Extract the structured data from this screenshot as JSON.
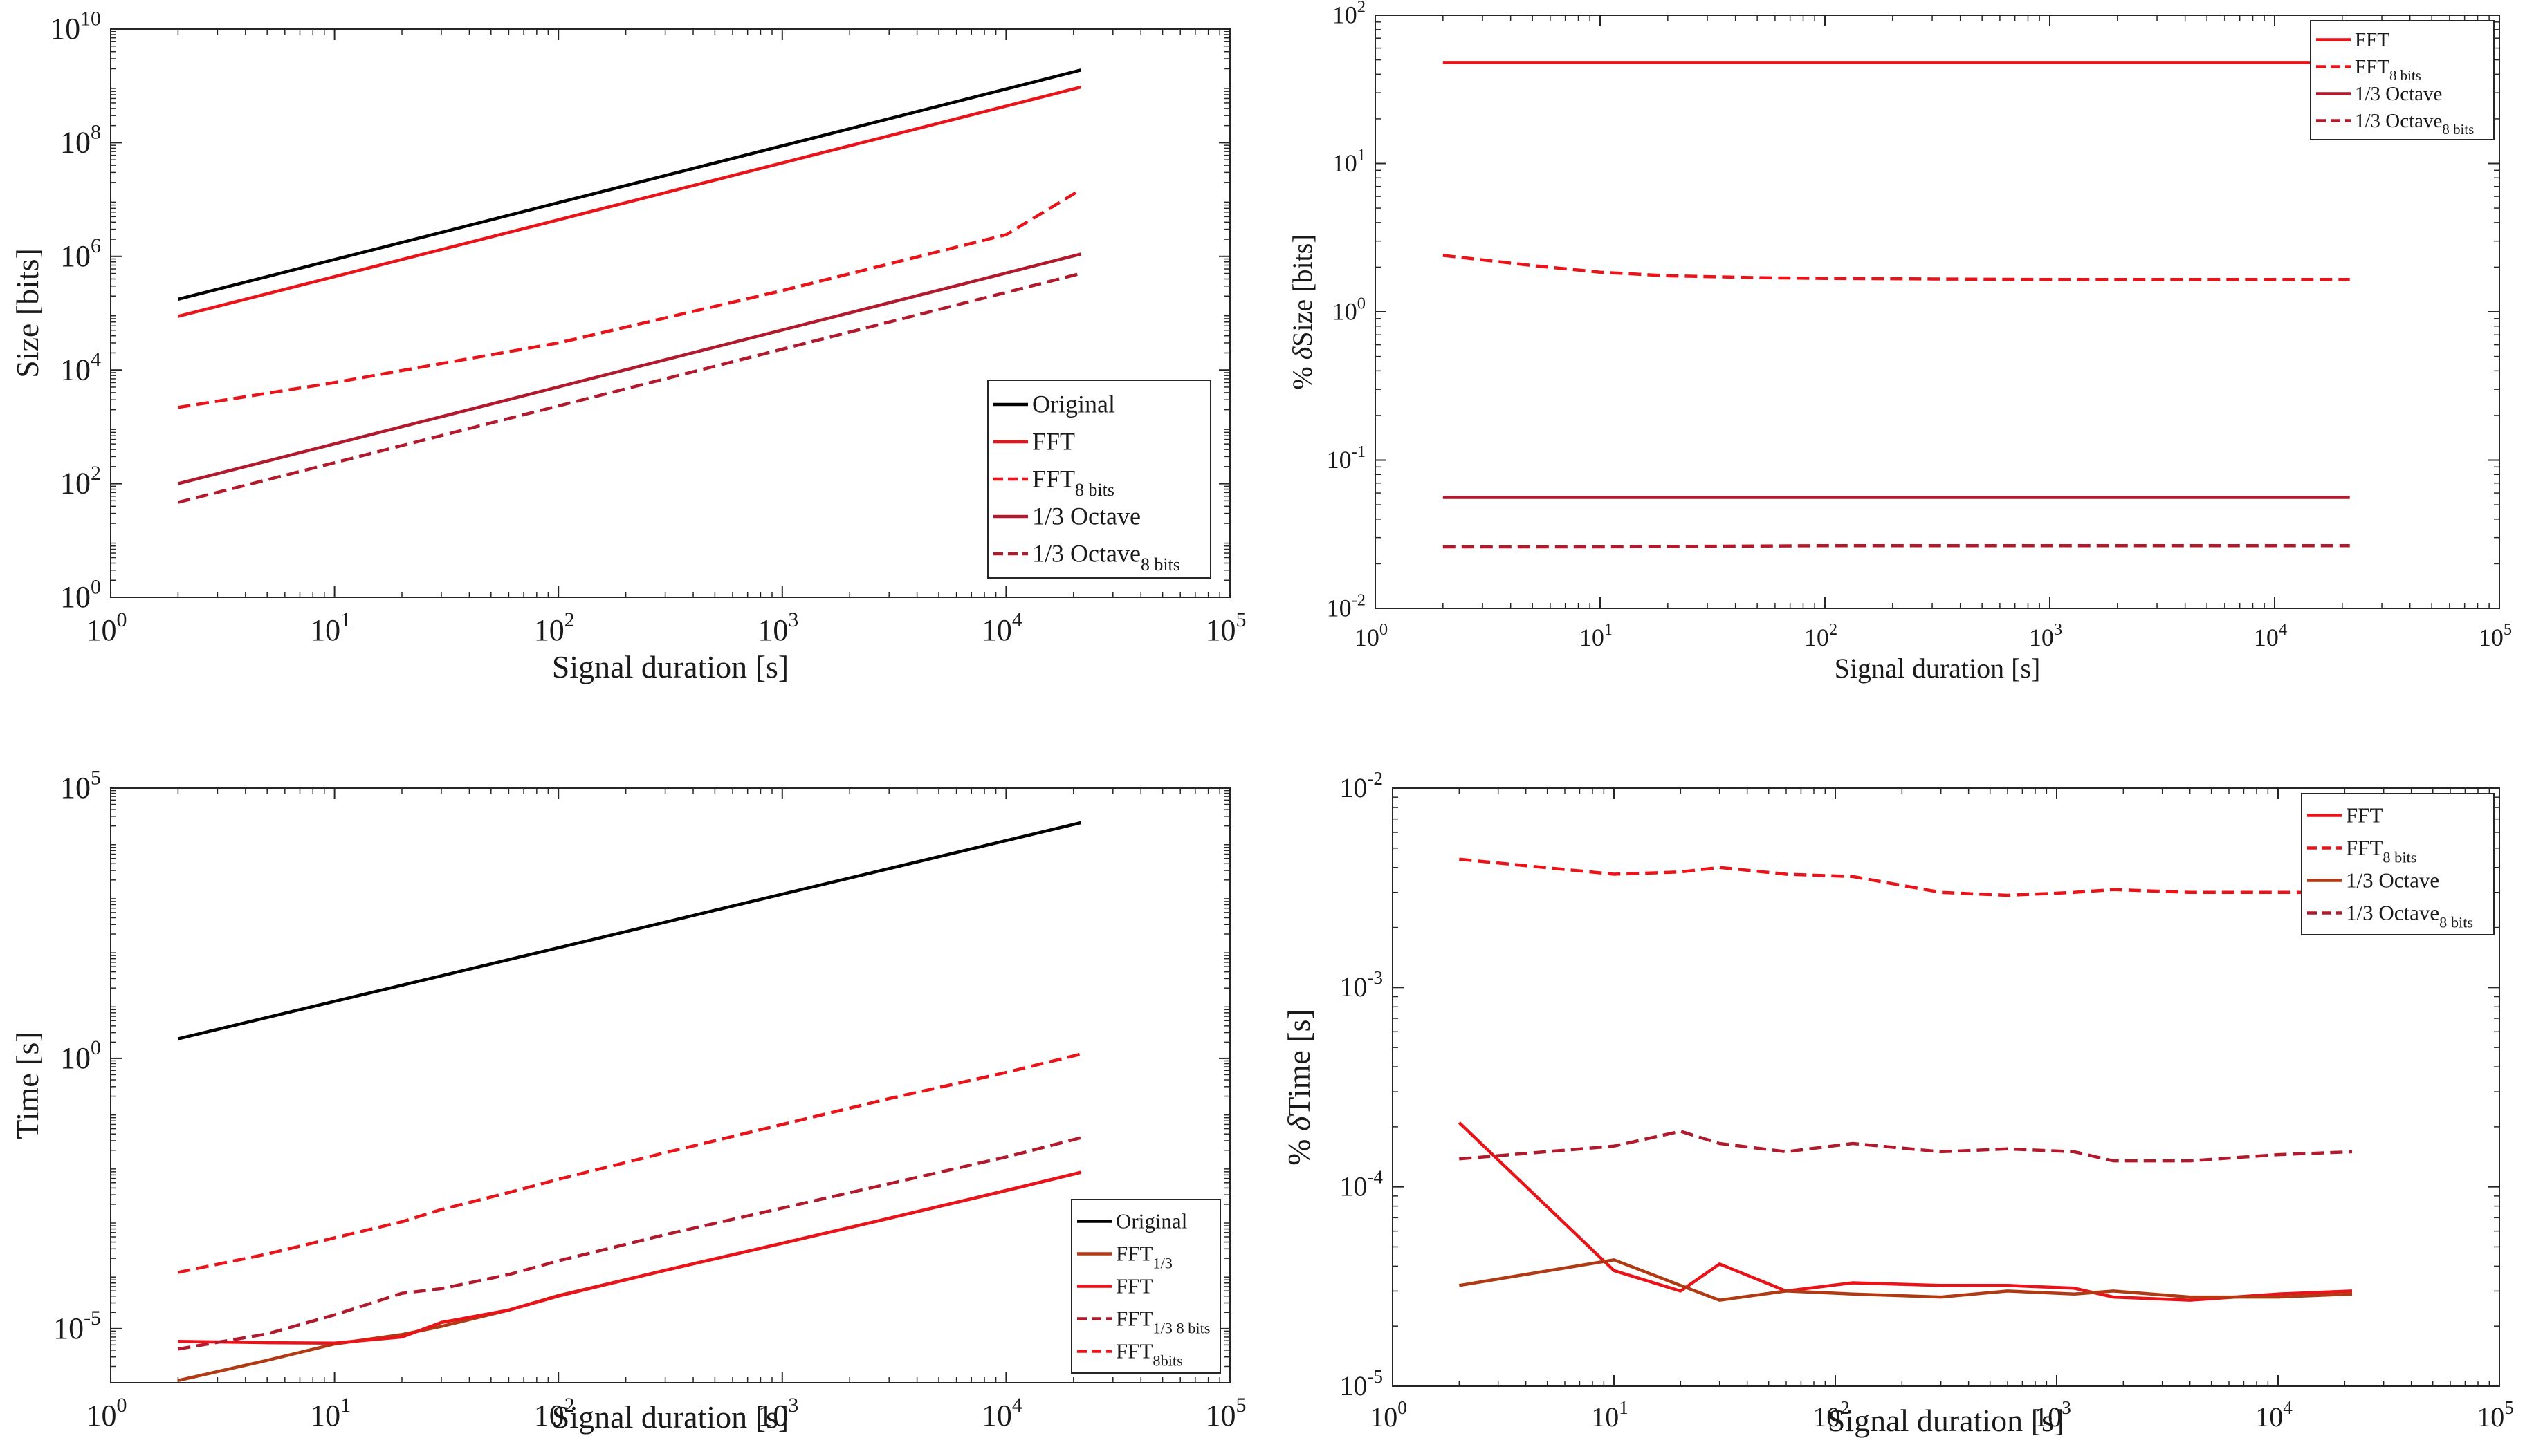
{
  "chart_data": [
    {
      "type": "line",
      "title": "",
      "xlabel": "Signal duration [s]",
      "ylabel": "Size [bits]",
      "xscale": "log",
      "yscale": "log",
      "xlim": [
        1,
        100000
      ],
      "ylim": [
        1,
        10000000000
      ],
      "xticks": [
        {
          "base": "10",
          "exp": "0"
        },
        {
          "base": "10",
          "exp": "1"
        },
        {
          "base": "10",
          "exp": "2"
        },
        {
          "base": "10",
          "exp": "3"
        },
        {
          "base": "10",
          "exp": "4"
        },
        {
          "base": "10",
          "exp": "5"
        }
      ],
      "yticks": [
        {
          "base": "10",
          "exp": "0"
        },
        {
          "base": "10",
          "exp": "2"
        },
        {
          "base": "10",
          "exp": "4"
        },
        {
          "base": "10",
          "exp": "6"
        },
        {
          "base": "10",
          "exp": "8"
        },
        {
          "base": "10",
          "exp": "10"
        }
      ],
      "legend_position": "bottom-right",
      "series": [
        {
          "name": "Original",
          "sub": "",
          "color": "#000000",
          "dash": "solid",
          "x": [
            2,
            21600
          ],
          "y": [
            176000,
            1900000000
          ]
        },
        {
          "name": "FFT",
          "sub": "",
          "color": "#e8141a",
          "dash": "solid",
          "x": [
            2,
            21600
          ],
          "y": [
            88000,
            950000000
          ]
        },
        {
          "name": "FFT",
          "sub": "8 bits",
          "color": "#e8141a",
          "dash": "dash",
          "x": [
            2,
            10,
            30,
            100,
            1000,
            10000,
            21600
          ],
          "y": [
            2200,
            6000,
            13000,
            30000,
            250000,
            2400000,
            15000000
          ]
        },
        {
          "name": "1/3 Octave",
          "sub": "",
          "color": "#b01a2c",
          "dash": "solid",
          "x": [
            2,
            21600
          ],
          "y": [
            100,
            1100000
          ]
        },
        {
          "name": "1/3 Octave",
          "sub": "8 bits",
          "color": "#b01a2c",
          "dash": "dash",
          "x": [
            2,
            21600
          ],
          "y": [
            47,
            500000
          ]
        }
      ]
    },
    {
      "type": "line",
      "title": "",
      "xlabel": "Signal duration [s]",
      "ylabel_parts": [
        "% ",
        "δ",
        "Size [bits]"
      ],
      "xscale": "log",
      "yscale": "log",
      "xlim": [
        1,
        100000
      ],
      "ylim": [
        0.01,
        100
      ],
      "xticks": [
        {
          "base": "10",
          "exp": "0"
        },
        {
          "base": "10",
          "exp": "1"
        },
        {
          "base": "10",
          "exp": "2"
        },
        {
          "base": "10",
          "exp": "3"
        },
        {
          "base": "10",
          "exp": "4"
        },
        {
          "base": "10",
          "exp": "5"
        }
      ],
      "yticks": [
        {
          "base": "10",
          "exp": "-2"
        },
        {
          "base": "10",
          "exp": "-1"
        },
        {
          "base": "10",
          "exp": "0"
        },
        {
          "base": "10",
          "exp": "1"
        },
        {
          "base": "10",
          "exp": "2"
        }
      ],
      "legend_position": "top-right",
      "series": [
        {
          "name": "FFT",
          "sub": "",
          "color": "#e8141a",
          "dash": "solid",
          "x": [
            2,
            21600
          ],
          "y": [
            48,
            48
          ]
        },
        {
          "name": "FFT",
          "sub": "8 bits",
          "color": "#e8141a",
          "dash": "dash",
          "x": [
            2,
            5,
            10,
            20,
            50,
            100,
            1000,
            21600
          ],
          "y": [
            2.4,
            2.05,
            1.85,
            1.75,
            1.7,
            1.68,
            1.65,
            1.65
          ]
        },
        {
          "name": "1/3 Octave",
          "sub": "",
          "color": "#b01a2c",
          "dash": "solid",
          "x": [
            2,
            21600
          ],
          "y": [
            0.056,
            0.056
          ]
        },
        {
          "name": "1/3 Octave",
          "sub": "8 bits",
          "color": "#b01a2c",
          "dash": "dash",
          "x": [
            2,
            10,
            100,
            21600
          ],
          "y": [
            0.026,
            0.026,
            0.0265,
            0.0265
          ]
        }
      ]
    },
    {
      "type": "line",
      "title": "",
      "xlabel": "Signal duration [s]",
      "ylabel": "Time [s]",
      "xscale": "log",
      "yscale": "log",
      "xlim": [
        1,
        100000
      ],
      "ylim": [
        1e-06,
        100000
      ],
      "xticks": [
        {
          "base": "10",
          "exp": "0"
        },
        {
          "base": "10",
          "exp": "1"
        },
        {
          "base": "10",
          "exp": "2"
        },
        {
          "base": "10",
          "exp": "3"
        },
        {
          "base": "10",
          "exp": "4"
        },
        {
          "base": "10",
          "exp": "5"
        }
      ],
      "yticks": [
        {
          "base": "10",
          "exp": "-5"
        },
        {
          "base": "10",
          "exp": "0"
        },
        {
          "base": "10",
          "exp": "5"
        }
      ],
      "legend_position": "bottom-right",
      "series": [
        {
          "name": "Original",
          "sub": "",
          "color": "#000000",
          "dash": "solid",
          "x": [
            2,
            21600
          ],
          "y": [
            2.3,
            23000
          ]
        },
        {
          "name": "FFT",
          "sub": "1/3",
          "color": "#b03a14",
          "dash": "solid",
          "x": [
            2,
            5,
            10,
            20,
            30,
            60,
            100,
            300,
            1000,
            3000,
            10000,
            21600
          ],
          "y": [
            1.1e-06,
            2.6e-06,
            5.2e-06,
            7.8e-06,
            1.1e-05,
            2.2e-05,
            4.1e-05,
            0.00012,
            0.00038,
            0.0011,
            0.0036,
            0.0078
          ]
        },
        {
          "name": "FFT",
          "sub": "",
          "color": "#e8141a",
          "dash": "solid",
          "x": [
            2,
            5,
            10,
            20,
            30,
            60,
            100,
            300,
            1000,
            3000,
            10000,
            21600
          ],
          "y": [
            5.8e-06,
            5.5e-06,
            5.4e-06,
            7e-06,
            1.3e-05,
            2.2e-05,
            4e-05,
            0.00012,
            0.00038,
            0.0011,
            0.0036,
            0.0078
          ]
        },
        {
          "name": "FFT",
          "sub": "1/3 8 bits",
          "color": "#b01a2c",
          "dash": "dash",
          "x": [
            2,
            5,
            10,
            20,
            30,
            60,
            100,
            300,
            1000,
            3000,
            10000,
            21600
          ],
          "y": [
            4.2e-06,
            8e-06,
            1.8e-05,
            4.5e-05,
            5.5e-05,
            0.0001,
            0.00018,
            0.00055,
            0.0017,
            0.0048,
            0.015,
            0.034
          ]
        },
        {
          "name": "FFT",
          "sub": "8bits",
          "color": "#e8141a",
          "dash": "dash",
          "x": [
            2,
            5,
            10,
            20,
            30,
            60,
            100,
            300,
            1000,
            3000,
            10000,
            21600
          ],
          "y": [
            0.00011,
            0.00024,
            0.00048,
            0.00095,
            0.0016,
            0.0033,
            0.0058,
            0.018,
            0.06,
            0.18,
            0.55,
            1.2
          ]
        }
      ]
    },
    {
      "type": "line",
      "title": "",
      "xlabel": "Signal duration [s]",
      "ylabel_parts": [
        "% ",
        "δ",
        "Time [s]"
      ],
      "xscale": "log",
      "yscale": "log",
      "xlim": [
        1,
        100000
      ],
      "ylim": [
        1e-05,
        0.01
      ],
      "xticks": [
        {
          "base": "10",
          "exp": "0"
        },
        {
          "base": "10",
          "exp": "1"
        },
        {
          "base": "10",
          "exp": "2"
        },
        {
          "base": "10",
          "exp": "3"
        },
        {
          "base": "10",
          "exp": "4"
        },
        {
          "base": "10",
          "exp": "5"
        }
      ],
      "yticks": [
        {
          "base": "10",
          "exp": "-5"
        },
        {
          "base": "10",
          "exp": "-4"
        },
        {
          "base": "10",
          "exp": "-3"
        },
        {
          "base": "10",
          "exp": "-2"
        }
      ],
      "legend_position": "top-right",
      "series": [
        {
          "name": "FFT",
          "sub": "",
          "color": "#e8141a",
          "dash": "solid",
          "x": [
            2,
            10,
            20,
            30,
            60,
            120,
            300,
            600,
            1200,
            1800,
            4000,
            10000,
            21600
          ],
          "y": [
            0.00021,
            3.8e-05,
            3e-05,
            4.1e-05,
            3e-05,
            3.3e-05,
            3.2e-05,
            3.2e-05,
            3.1e-05,
            2.8e-05,
            2.7e-05,
            2.9e-05,
            3e-05
          ]
        },
        {
          "name": "FFT",
          "sub": "8 bits",
          "color": "#e8141a",
          "dash": "dash",
          "x": [
            2,
            10,
            20,
            30,
            60,
            120,
            300,
            600,
            1200,
            1800,
            4000,
            10000,
            21600
          ],
          "y": [
            0.0044,
            0.0037,
            0.0038,
            0.004,
            0.0037,
            0.0036,
            0.003,
            0.0029,
            0.003,
            0.0031,
            0.003,
            0.003,
            0.003
          ]
        },
        {
          "name": "1/3 Octave",
          "sub": "",
          "color": "#b03a14",
          "dash": "solid",
          "x": [
            2,
            10,
            20,
            30,
            60,
            120,
            300,
            600,
            1200,
            1800,
            4000,
            10000,
            21600
          ],
          "y": [
            3.2e-05,
            4.3e-05,
            3.2e-05,
            2.7e-05,
            3e-05,
            2.9e-05,
            2.8e-05,
            3e-05,
            2.9e-05,
            3e-05,
            2.8e-05,
            2.8e-05,
            2.9e-05
          ]
        },
        {
          "name": "1/3 Octave",
          "sub": "8 bits",
          "color": "#b01a2c",
          "dash": "dash",
          "x": [
            2,
            10,
            20,
            30,
            60,
            120,
            300,
            600,
            1200,
            1800,
            4000,
            10000,
            21600
          ],
          "y": [
            0.000138,
            0.00016,
            0.00019,
            0.000165,
            0.00015,
            0.000165,
            0.00015,
            0.000155,
            0.00015,
            0.000135,
            0.000135,
            0.000145,
            0.00015
          ]
        }
      ]
    }
  ]
}
